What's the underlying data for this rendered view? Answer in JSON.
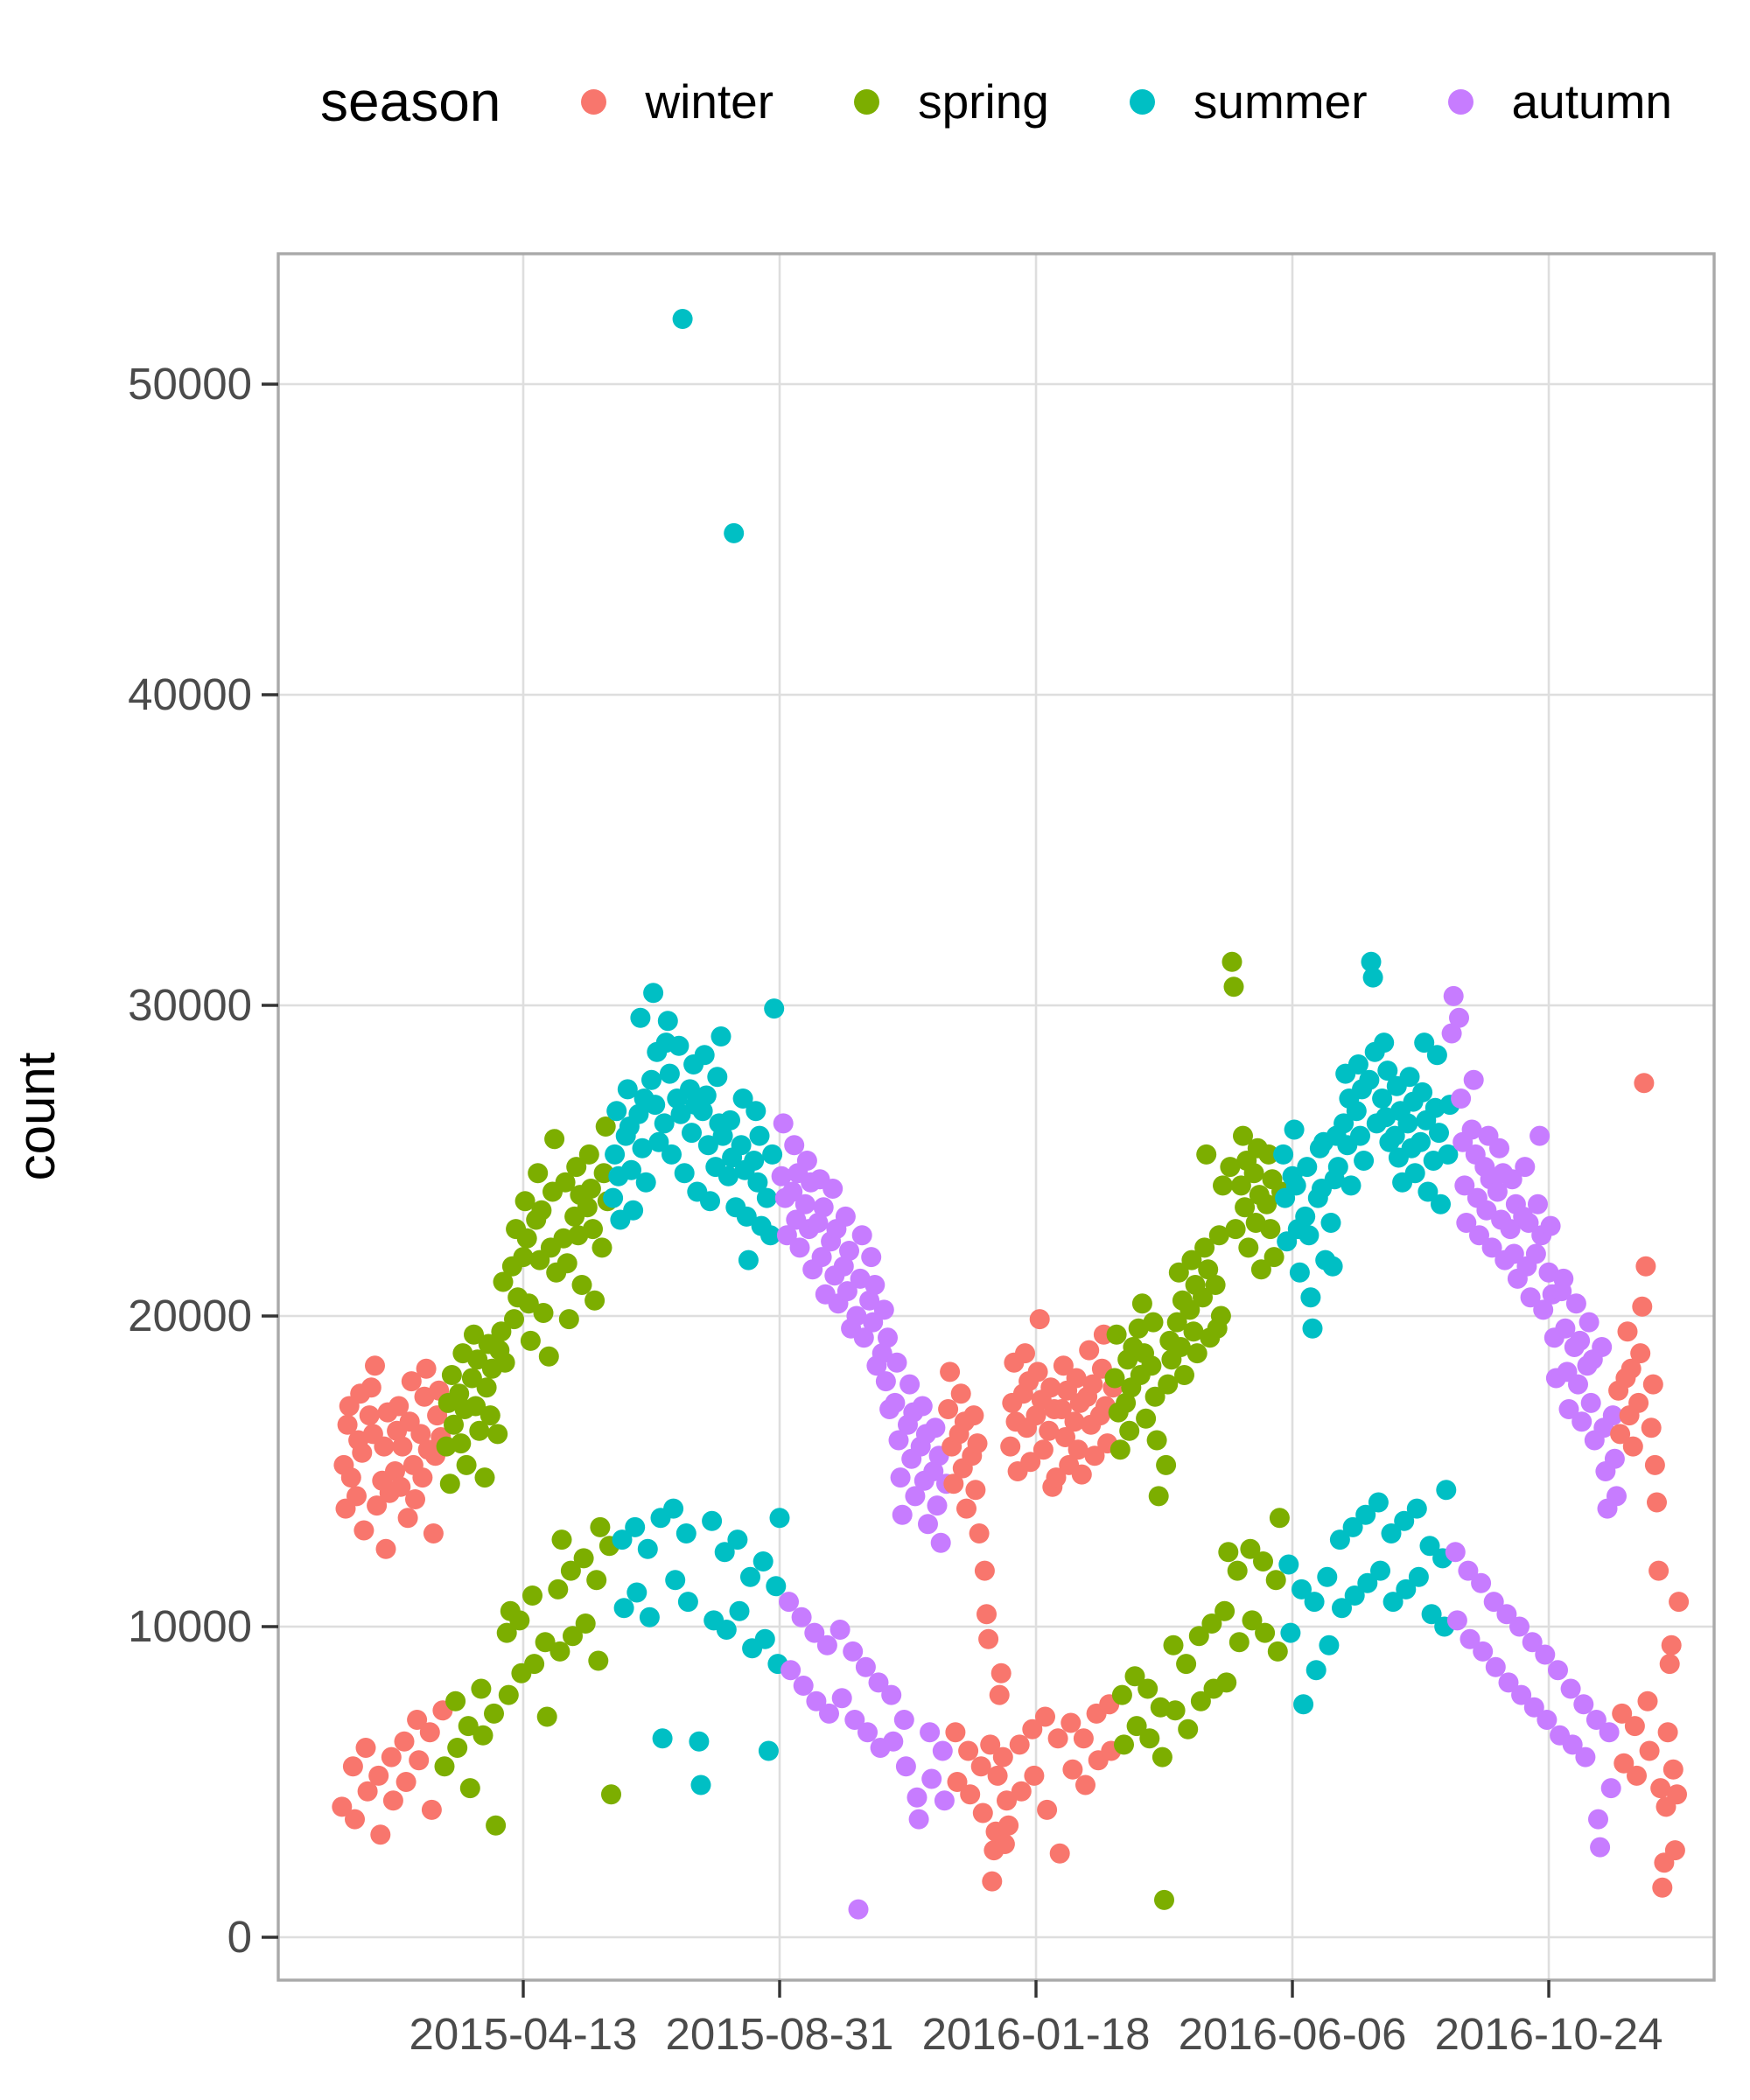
{
  "chart_data": {
    "type": "scatter",
    "title": "",
    "xlabel": "",
    "ylabel": "count",
    "x_tick_labels": [
      "2015-04-13",
      "2015-08-31",
      "2016-01-18",
      "2016-06-06",
      "2016-10-24"
    ],
    "y_tick_labels": [
      "0",
      "10000",
      "20000",
      "30000",
      "40000",
      "50000"
    ],
    "y_tick_values": [
      0,
      10000,
      20000,
      30000,
      40000,
      50000
    ],
    "ylim": [
      -1550,
      54200
    ],
    "xlim": [
      "2014-11-30",
      "2017-01-22"
    ],
    "grid": "major-only",
    "legend": {
      "title": "season",
      "position": "top",
      "items": [
        {
          "label": "winter",
          "color": "#F8766D"
        },
        {
          "label": "spring",
          "color": "#7CAE00"
        },
        {
          "label": "summer",
          "color": "#00BFC4"
        },
        {
          "label": "autumn",
          "color": "#C77CFF"
        }
      ]
    },
    "season_by_month": {
      "1": "winter",
      "2": "winter",
      "3": "spring",
      "4": "spring",
      "5": "spring",
      "6": "summer",
      "7": "summer",
      "8": "summer",
      "9": "autumn",
      "10": "autumn",
      "11": "autumn",
      "12": "winter"
    },
    "value_unit": 100,
    "start_date": "2015-01-04",
    "months": [
      {
        "ym": "2015-01",
        "first_day": 4,
        "values": [
          42,
          152,
          138,
          165,
          171,
          148,
          55,
          38,
          142,
          160,
          175,
          156,
          131,
          61,
          47,
          168,
          177,
          162,
          184,
          139,
          52,
          33,
          147,
          158,
          125,
          169,
          143,
          58
        ]
      },
      {
        "ym": "2015-02",
        "first_day": 1,
        "values": [
          44,
          150,
          163,
          171,
          145,
          158,
          63,
          50,
          135,
          166,
          179,
          152,
          141,
          70,
          57,
          162,
          148,
          174,
          183,
          157,
          66,
          41,
          130,
          155,
          168,
          176,
          161,
          73
        ]
      },
      {
        "ym": "2015-03",
        "first_day": 1,
        "values": [
          55,
          158,
          172,
          146,
          181,
          165,
          76,
          61,
          175,
          159,
          188,
          170,
          152,
          68,
          48,
          180,
          194,
          171,
          186,
          163,
          80,
          65,
          148,
          177,
          191,
          168,
          183,
          72,
          36,
          162,
          189
        ]
      },
      {
        "ym": "2015-04",
        "first_day": 1,
        "values": [
          195,
          211,
          185,
          98,
          78,
          105,
          216,
          199,
          228,
          206,
          102,
          85,
          219,
          237,
          225,
          204,
          192,
          110,
          88,
          231,
          246,
          218,
          234,
          201,
          95,
          71,
          187,
          222,
          240,
          257
        ]
      },
      {
        "ym": "2015-05",
        "first_day": 1,
        "values": [
          214,
          112,
          92,
          128,
          225,
          243,
          217,
          199,
          118,
          97,
          232,
          248,
          226,
          239,
          210,
          122,
          101,
          235,
          252,
          241,
          228,
          205,
          115,
          89,
          132,
          222,
          246,
          261,
          237,
          126,
          46
        ]
      },
      {
        "ym": "2015-06",
        "first_day": 1,
        "values": [
          238,
          252,
          266,
          245,
          231,
          128,
          106,
          258,
          273,
          261,
          247,
          234,
          132,
          111,
          265,
          296,
          254,
          270,
          243,
          125,
          103,
          276,
          304,
          268,
          285,
          256,
          135,
          64,
          262,
          288
        ]
      },
      {
        "ym": "2015-07",
        "first_day": 1,
        "values": [
          295,
          278,
          252,
          138,
          115,
          270,
          287,
          265,
          521,
          246,
          130,
          108,
          273,
          259,
          281,
          268,
          240,
          63,
          49,
          266,
          284,
          271,
          255,
          237,
          134,
          102,
          248,
          277,
          262,
          290,
          258
        ]
      },
      {
        "ym": "2015-08",
        "first_day": 1,
        "values": [
          124,
          99,
          245,
          263,
          251,
          452,
          235,
          128,
          105,
          255,
          270,
          247,
          232,
          218,
          116,
          93,
          250,
          266,
          243,
          258,
          229,
          121,
          96,
          238,
          60,
          226,
          252,
          299,
          113,
          88,
          135
        ]
      },
      {
        "ym": "2015-09",
        "first_day": 1,
        "values": [
          245,
          262,
          238,
          226,
          108,
          86,
          240,
          255,
          231,
          246,
          222,
          103,
          81,
          236,
          250,
          228,
          243,
          215,
          98,
          76,
          230,
          244,
          219,
          235,
          207,
          94,
          72,
          224,
          241,
          213
        ]
      },
      {
        "ym": "2015-10",
        "first_day": 1,
        "values": [
          228,
          204,
          99,
          77,
          216,
          232,
          208,
          221,
          196,
          92,
          70,
          200,
          9,
          212,
          226,
          193,
          87,
          66,
          205,
          219,
          198,
          210,
          184,
          82,
          61,
          188,
          202,
          179,
          193,
          170,
          78
        ]
      },
      {
        "ym": "2015-11",
        "first_day": 1,
        "values": [
          63,
          172,
          185,
          160,
          148,
          136,
          70,
          55,
          165,
          178,
          154,
          169,
          142,
          45,
          38,
          158,
          171,
          147,
          162,
          133,
          66,
          51,
          150,
          164,
          139,
          155,
          127,
          60,
          44,
          146
        ]
      },
      {
        "ym": "2015-12",
        "first_day": 1,
        "values": [
          170,
          182,
          158,
          146,
          66,
          50,
          162,
          175,
          151,
          166,
          138,
          60,
          46,
          155,
          168,
          144,
          159,
          130,
          55,
          40,
          118,
          104,
          96,
          62,
          18,
          28,
          34,
          52,
          78,
          85,
          58
        ]
      },
      {
        "ym": "2016-01",
        "first_day": 1,
        "values": [
          30,
          44,
          36,
          158,
          172,
          185,
          166,
          150,
          62,
          47,
          175,
          188,
          164,
          179,
          153,
          67,
          52,
          168,
          182,
          199,
          173,
          157,
          71,
          41,
          163,
          177,
          145,
          170,
          148,
          64,
          27
        ]
      },
      {
        "ym": "2016-02",
        "first_day": 1,
        "values": [
          170,
          184,
          161,
          176,
          152,
          69,
          54,
          166,
          180,
          157,
          172,
          149,
          64,
          49,
          174,
          189,
          165,
          178,
          155,
          72,
          57,
          168,
          183,
          194,
          171,
          159,
          75,
          60,
          177
        ]
      },
      {
        "ym": "2016-03",
        "first_day": 1,
        "values": [
          180,
          194,
          169,
          157,
          78,
          62,
          172,
          186,
          163,
          177,
          190,
          84,
          68,
          196,
          181,
          204,
          188,
          167,
          80,
          64,
          184,
          198,
          174,
          160,
          142,
          74,
          58,
          12,
          152,
          178,
          192
        ]
      },
      {
        "ym": "2016-04",
        "first_day": 1,
        "values": [
          186,
          94,
          73,
          198,
          214,
          190,
          205,
          181,
          88,
          67,
          202,
          218,
          195,
          210,
          188,
          97,
          76,
          206,
          222,
          252,
          215,
          193,
          101,
          80,
          210,
          196,
          226,
          200,
          242,
          105
        ]
      },
      {
        "ym": "2016-05",
        "first_day": 1,
        "values": [
          82,
          124,
          248,
          314,
          306,
          228,
          118,
          95,
          242,
          258,
          235,
          250,
          222,
          125,
          102,
          246,
          230,
          254,
          239,
          215,
          121,
          98,
          236,
          252,
          228,
          244,
          219,
          115,
          92,
          135,
          240
        ]
      },
      {
        "ym": "2016-06",
        "first_day": 1,
        "values": [
          252,
          238,
          224,
          120,
          98,
          245,
          260,
          242,
          228,
          214,
          112,
          75,
          232,
          248,
          226,
          206,
          196,
          108,
          86,
          238,
          254,
          241,
          256,
          218,
          116,
          94,
          230,
          216,
          244,
          258
        ]
      },
      {
        "ym": "2016-07",
        "first_day": 1,
        "values": [
          248,
          128,
          106,
          262,
          278,
          255,
          270,
          242,
          132,
          110,
          266,
          281,
          258,
          273,
          250,
          136,
          114,
          276,
          314,
          309,
          285,
          262,
          140,
          118,
          270,
          288,
          264,
          279,
          256,
          130,
          108
        ]
      },
      {
        "ym": "2016-08",
        "first_day": 1,
        "values": [
          258,
          274,
          251,
          266,
          243,
          134,
          112,
          262,
          277,
          254,
          269,
          246,
          138,
          116,
          256,
          272,
          288,
          263,
          240,
          126,
          104,
          250,
          267,
          284,
          259,
          236,
          122,
          100,
          144,
          252,
          268
        ]
      },
      {
        "ym": "2016-09",
        "first_day": 1,
        "values": [
          291,
          303,
          124,
          102,
          296,
          270,
          256,
          242,
          230,
          118,
          96,
          260,
          276,
          252,
          238,
          226,
          114,
          92,
          248,
          234,
          258,
          244,
          222,
          108,
          87,
          240,
          254,
          231,
          246,
          218
        ]
      },
      {
        "ym": "2016-10",
        "first_day": 1,
        "values": [
          104,
          82,
          228,
          244,
          220,
          236,
          212,
          100,
          78,
          232,
          248,
          216,
          230,
          206,
          95,
          74,
          220,
          236,
          258,
          226,
          202,
          91,
          70,
          214,
          229,
          207,
          193,
          180,
          86,
          65,
          208
        ]
      },
      {
        "ym": "2016-11",
        "first_day": 1,
        "values": [
          212,
          196,
          182,
          170,
          80,
          62,
          190,
          204,
          178,
          192,
          166,
          75,
          58,
          184,
          198,
          172,
          186,
          160,
          70,
          38,
          29,
          190,
          164,
          150,
          138,
          66,
          48,
          168,
          154,
          142
        ]
      },
      {
        "ym": "2016-12",
        "first_day": 1,
        "values": [
          176,
          162,
          72,
          56,
          180,
          195,
          168,
          183,
          158,
          68,
          52,
          172,
          188,
          203,
          275,
          216,
          76,
          60,
          164,
          178,
          152,
          140,
          118,
          48,
          16,
          24,
          42,
          66,
          88,
          94,
          54
        ]
      },
      {
        "ym": "2017-01",
        "first_day": 1,
        "values": [
          28,
          46,
          108
        ]
      }
    ]
  },
  "style": {
    "panel_border_color": "#a9a9a9",
    "gridline_color": "#dedede",
    "tick_mark_color": "#333333",
    "tick_label_color": "#4b4b4b",
    "background_color": "#ffffff"
  }
}
